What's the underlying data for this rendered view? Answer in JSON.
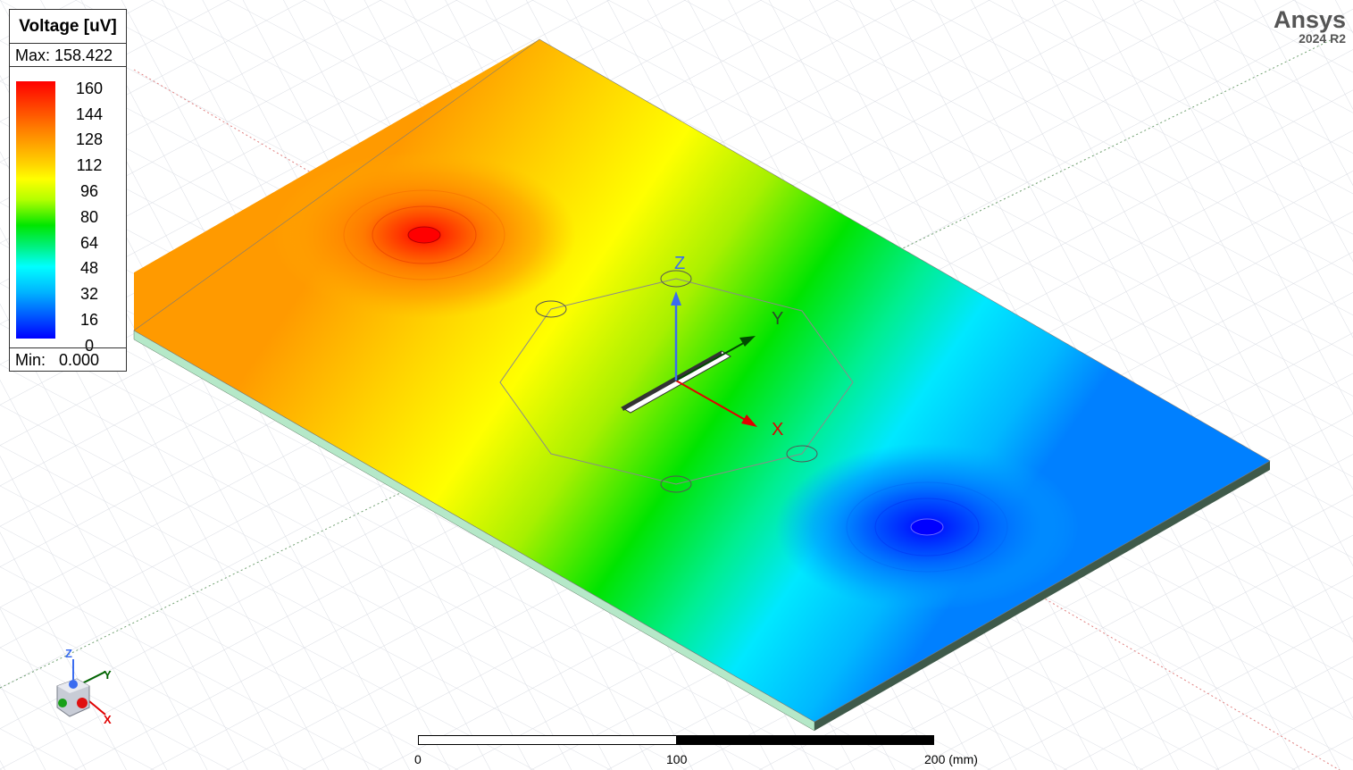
{
  "app": {
    "brand": "Ansys",
    "version": "2024 R2"
  },
  "legend": {
    "title": "Voltage [uV]",
    "max_label": "Max: 158.422",
    "min_label": "Min:   0.000",
    "ticks": [
      "160",
      "144",
      "128",
      "112",
      "96",
      "80",
      "64",
      "48",
      "32",
      "16",
      "0"
    ]
  },
  "axes": {
    "x": "X",
    "y": "Y",
    "z": "Z"
  },
  "triad": {
    "x": "X",
    "y": "Y",
    "z": "Z"
  },
  "scale": {
    "label_0": "0",
    "label_100": "100",
    "label_200": "200 (mm)"
  },
  "colors": {
    "max": "#ff0000",
    "mid": "#00e600",
    "min": "#0000ff",
    "x_axis": "#e00000",
    "y_axis": "#006400",
    "z_axis": "#3a6cf0"
  }
}
